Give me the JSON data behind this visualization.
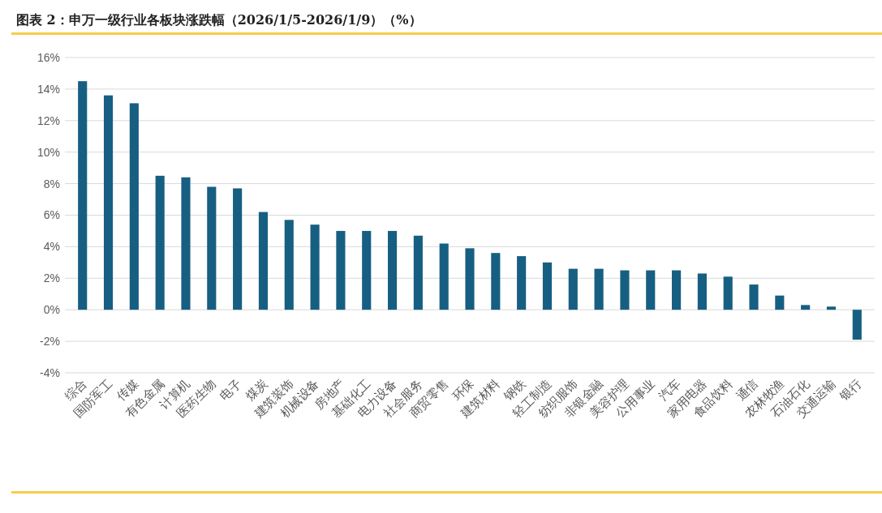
{
  "chart_data": {
    "type": "bar",
    "title": "图表 2：申万一级行业各板块涨跌幅（2026/1/5-2026/1/9）（%）",
    "categories": [
      "综合",
      "国防军工",
      "传媒",
      "有色金属",
      "计算机",
      "医药生物",
      "电子",
      "煤炭",
      "建筑装饰",
      "机械设备",
      "房地产",
      "基础化工",
      "电力设备",
      "社会服务",
      "商贸零售",
      "环保",
      "建筑材料",
      "钢铁",
      "轻工制造",
      "纺织服饰",
      "非银金融",
      "美容护理",
      "公用事业",
      "汽车",
      "家用电器",
      "食品饮料",
      "通信",
      "农林牧渔",
      "石油石化",
      "交通运输",
      "银行"
    ],
    "values": [
      14.5,
      13.6,
      13.1,
      8.5,
      8.4,
      7.8,
      7.7,
      6.2,
      5.7,
      5.4,
      5.0,
      5.0,
      5.0,
      4.7,
      4.2,
      3.9,
      3.6,
      3.4,
      3.0,
      2.6,
      2.6,
      2.5,
      2.5,
      2.5,
      2.3,
      2.1,
      1.6,
      0.9,
      0.3,
      0.2,
      -1.9
    ],
    "color": "#175f82",
    "ylim": [
      -4,
      16
    ],
    "yticks": [
      {
        "value": -4,
        "label": "-4%"
      },
      {
        "value": -2,
        "label": "-2%"
      },
      {
        "value": 0,
        "label": "0%"
      },
      {
        "value": 2,
        "label": "2%"
      },
      {
        "value": 4,
        "label": "4%"
      },
      {
        "value": 6,
        "label": "6%"
      },
      {
        "value": 8,
        "label": "8%"
      },
      {
        "value": 10,
        "label": "10%"
      },
      {
        "value": 12,
        "label": "12%"
      },
      {
        "value": 14,
        "label": "14%"
      },
      {
        "value": 16,
        "label": "16%"
      }
    ],
    "grid": "y"
  }
}
